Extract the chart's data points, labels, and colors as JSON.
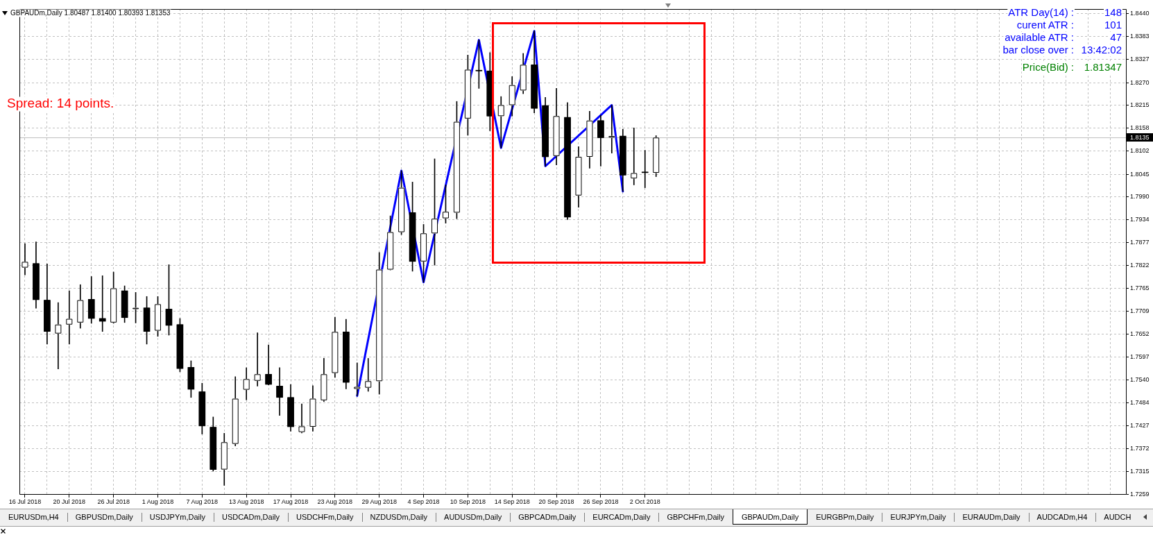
{
  "chart_data": [
    {
      "type": "candlestick",
      "title": "GBPAUDm,Daily 1.80487 1.81400 1.80393 1.81353",
      "categories": [
        "16 Jul 2018",
        null,
        null,
        null,
        "20 Jul 2018",
        null,
        null,
        null,
        "26 Jul 2018",
        null,
        null,
        null,
        "1 Aug 2018",
        null,
        null,
        null,
        "7 Aug 2018",
        null,
        null,
        null,
        "13 Aug 2018",
        null,
        null,
        null,
        "17 Aug 2018",
        null,
        null,
        null,
        "23 Aug 2018",
        null,
        null,
        null,
        "29 Aug 2018",
        null,
        null,
        null,
        "4 Sep 2018",
        null,
        null,
        null,
        "10 Sep 2018",
        null,
        null,
        null,
        "14 Sep 2018",
        null,
        null,
        null,
        "20 Sep 2018",
        null,
        null,
        null,
        "26 Sep 2018",
        null,
        null,
        null,
        "2 Oct 2018",
        null,
        null,
        null,
        null,
        null,
        null,
        null,
        null,
        null,
        null,
        null,
        null,
        null,
        null,
        null,
        null,
        null,
        null,
        null,
        null,
        null,
        null,
        null,
        null,
        null,
        null,
        null,
        null,
        null,
        null,
        null,
        null,
        null,
        null,
        null,
        null,
        null,
        null,
        null,
        null,
        null,
        null,
        null
      ],
      "series": [
        {
          "color": "#000000",
          "colors": [
            "#ffffff",
            "#000000",
            "#000000",
            "#ffffff",
            "#ffffff",
            "#ffffff",
            "#000000",
            "#000000",
            "#ffffff",
            "#000000",
            "#ffffff",
            "#000000",
            "#ffffff",
            "#000000",
            "#000000",
            "#000000",
            "#000000",
            "#000000",
            "#ffffff",
            "#ffffff",
            "#ffffff",
            "#ffffff",
            "#000000",
            "#000000",
            "#000000",
            "#ffffff",
            "#ffffff",
            "#ffffff",
            "#ffffff",
            "#000000",
            "#ffffff",
            "#ffffff",
            "#ffffff",
            "#ffffff",
            "#ffffff",
            "#000000",
            "#ffffff",
            "#ffffff",
            "#ffffff",
            "#ffffff",
            "#ffffff",
            "#000000",
            "#000000",
            "#ffffff",
            "#ffffff",
            "#ffffff",
            "#000000",
            "#000000",
            "#ffffff",
            "#000000",
            "#ffffff",
            "#ffffff",
            "#000000",
            "#ffffff",
            "#000000",
            "#ffffff",
            "#000000",
            "#ffffff",
            null,
            null,
            null,
            null,
            null,
            null,
            null,
            null,
            null,
            null,
            null,
            null,
            null,
            null,
            null,
            null,
            null,
            null,
            null,
            null,
            null,
            null,
            null,
            null,
            null,
            null,
            null,
            null,
            null,
            null,
            null,
            null,
            null,
            null,
            null,
            null,
            null,
            null,
            null,
            null,
            null,
            null
          ],
          "ohlc": [
            [
              1.7816,
              1.7875,
              1.7798,
              1.783
            ],
            [
              1.7826,
              1.7879,
              1.7716,
              1.7737
            ],
            [
              1.7736,
              1.7825,
              1.7628,
              1.7659
            ],
            [
              1.7654,
              1.773,
              1.7567,
              1.7676
            ],
            [
              1.7676,
              1.7759,
              1.7628,
              1.769
            ],
            [
              1.7681,
              1.7774,
              1.7667,
              1.7736
            ],
            [
              1.7738,
              1.7794,
              1.7679,
              1.7691
            ],
            [
              1.7691,
              1.7796,
              1.7659,
              1.7684
            ],
            [
              1.7681,
              1.7805,
              1.7679,
              1.7765
            ],
            [
              1.7759,
              1.7771,
              1.7681,
              1.7693
            ],
            [
              1.7714,
              1.7755,
              1.768,
              1.7717
            ],
            [
              1.7717,
              1.7745,
              1.7628,
              1.7659
            ],
            [
              1.7661,
              1.7745,
              1.7647,
              1.7726
            ],
            [
              1.7714,
              1.7823,
              1.765,
              1.7674
            ],
            [
              1.7676,
              1.7691,
              1.756,
              1.7568
            ],
            [
              1.7571,
              1.7587,
              1.7497,
              1.7517
            ],
            [
              1.7511,
              1.7532,
              1.7407,
              1.7427
            ],
            [
              1.7424,
              1.7449,
              1.7316,
              1.732
            ],
            [
              1.732,
              1.7409,
              1.7281,
              1.7387
            ],
            [
              1.7383,
              1.7548,
              1.7378,
              1.7494
            ],
            [
              1.7516,
              1.757,
              1.7491,
              1.7542
            ],
            [
              1.7538,
              1.7656,
              1.7525,
              1.7554
            ],
            [
              1.7554,
              1.7626,
              1.7528,
              1.7529
            ],
            [
              1.7525,
              1.757,
              1.7453,
              1.7497
            ],
            [
              1.7497,
              1.7529,
              1.7414,
              1.7425
            ],
            [
              1.7412,
              1.7481,
              1.741,
              1.7426
            ],
            [
              1.7425,
              1.7526,
              1.7414,
              1.7494
            ],
            [
              1.749,
              1.7593,
              1.7487,
              1.7554
            ],
            [
              1.7557,
              1.7694,
              1.7546,
              1.7658
            ],
            [
              1.7658,
              1.7689,
              1.7518,
              1.7534
            ],
            [
              1.7518,
              1.7582,
              1.7501,
              1.7523
            ],
            [
              1.7521,
              1.7593,
              1.7512,
              1.7537
            ],
            [
              1.7537,
              1.7853,
              1.7505,
              1.7811
            ],
            [
              1.7811,
              1.7943,
              1.781,
              1.7903
            ],
            [
              1.7903,
              1.8054,
              1.7897,
              1.8012
            ],
            [
              1.7951,
              1.8026,
              1.7807,
              1.7831
            ],
            [
              1.7831,
              1.7922,
              1.778,
              1.79
            ],
            [
              1.79,
              1.8083,
              1.7822,
              1.7936
            ],
            [
              1.7937,
              1.8019,
              1.7925,
              1.7953
            ],
            [
              1.7951,
              1.8224,
              1.7936,
              1.8174
            ],
            [
              1.8182,
              1.8338,
              1.8141,
              1.8302
            ],
            [
              1.83,
              1.8375,
              1.8256,
              1.8299
            ],
            [
              1.8299,
              1.8344,
              1.8152,
              1.8188
            ],
            [
              1.8188,
              1.8236,
              1.811,
              1.8215
            ],
            [
              1.8215,
              1.8285,
              1.8188,
              1.8264
            ],
            [
              1.8251,
              1.8342,
              1.8243,
              1.8314
            ],
            [
              1.8314,
              1.8397,
              1.8196,
              1.8207
            ],
            [
              1.8214,
              1.8234,
              1.8065,
              1.8088
            ],
            [
              1.809,
              1.8256,
              1.8068,
              1.8188
            ],
            [
              1.8185,
              1.8221,
              1.7934,
              1.794
            ],
            [
              1.7993,
              1.8113,
              1.7964,
              1.8088
            ],
            [
              1.8088,
              1.82,
              1.806,
              1.8177
            ],
            [
              1.8177,
              1.819,
              1.8065,
              1.8135
            ],
            [
              1.8135,
              1.8215,
              1.8097,
              1.8139
            ],
            [
              1.8139,
              1.8156,
              1.8003,
              1.8043
            ],
            [
              1.8035,
              1.8159,
              1.8019,
              1.8048
            ],
            [
              1.805,
              1.8104,
              1.8012,
              1.8049
            ],
            [
              1.80487,
              1.814,
              1.80393,
              1.81353
            ],
            null,
            null,
            null,
            null,
            null,
            null,
            null,
            null,
            null,
            null,
            null,
            null,
            null,
            null,
            null,
            null,
            null,
            null,
            null,
            null,
            null,
            null,
            null,
            null,
            null,
            null,
            null,
            null,
            null,
            null,
            null,
            null,
            null,
            null,
            null,
            null,
            null,
            null,
            null,
            null,
            null,
            null
          ]
        },
        {
          "type": "line",
          "color": "#0000ff",
          "values": [
            null,
            null,
            null,
            null,
            null,
            null,
            null,
            null,
            null,
            null,
            null,
            null,
            null,
            null,
            null,
            null,
            null,
            null,
            null,
            null,
            null,
            null,
            null,
            null,
            null,
            null,
            null,
            null,
            null,
            null,
            1.7501,
            null,
            null,
            null,
            1.8054,
            null,
            1.778,
            null,
            null,
            null,
            null,
            1.8375,
            null,
            1.811,
            null,
            null,
            1.8397,
            1.8065,
            null,
            null,
            null,
            null,
            null,
            1.8215,
            1.8003,
            null,
            null,
            null,
            null,
            null,
            null,
            null,
            null,
            null,
            null,
            null,
            null,
            null,
            null,
            null,
            null,
            null,
            null,
            null,
            null,
            null,
            null,
            null,
            null,
            null,
            null,
            null,
            null,
            null,
            null,
            null,
            null,
            null,
            null,
            null,
            null,
            null,
            null,
            null,
            null,
            null,
            null,
            null,
            null,
            null
          ]
        }
      ],
      "ylim": [
        1.7258,
        1.8451
      ],
      "yticks": [
        1.7259,
        1.7315,
        1.7372,
        1.7427,
        1.7484,
        {
          "value": 1.754,
          "label": "1.7540"
        },
        1.7597,
        1.7652,
        1.7709,
        1.7765,
        1.7822,
        1.7877,
        1.7934,
        {
          "value": 1.799,
          "label": "1.7990"
        },
        1.8045,
        1.8102,
        1.8158,
        1.8215,
        {
          "value": 1.827,
          "label": "1.8270"
        },
        1.8327,
        1.8383,
        {
          "value": 1.844,
          "label": "1.8440"
        }
      ],
      "grid": true,
      "ref_lines": [
        {
          "axis": "y",
          "value": 1.8135,
          "label": "1.8135",
          "color": "#c0c0c0"
        }
      ],
      "annotations": [
        "Spread: 14 points.",
        "ATR Day(14) :",
        "148",
        "curent ATR :",
        "101",
        "available ATR :",
        "47",
        "bar close over :",
        "13:42:02",
        "Price(Bid) :",
        "1.81347"
      ]
    },
    {
      "type": "other",
      "annotations": [
        "EURUSDm,H4",
        "GBPUSDm,Daily",
        "USDJPYm,Daily",
        "USDCADm,Daily",
        "USDCHFm,Daily",
        "NZDUSDm,Daily",
        "AUDUSDm,Daily",
        "GBPCADm,Daily",
        "EURCADm,Daily",
        "GBPCHFm,Daily",
        "GBPAUDm,Daily",
        "EURGBPm,Daily",
        "EURJPYm,Daily",
        "EURAUDm,Daily",
        "AUDCADm,H4",
        "AUDCH"
      ]
    }
  ]
}
